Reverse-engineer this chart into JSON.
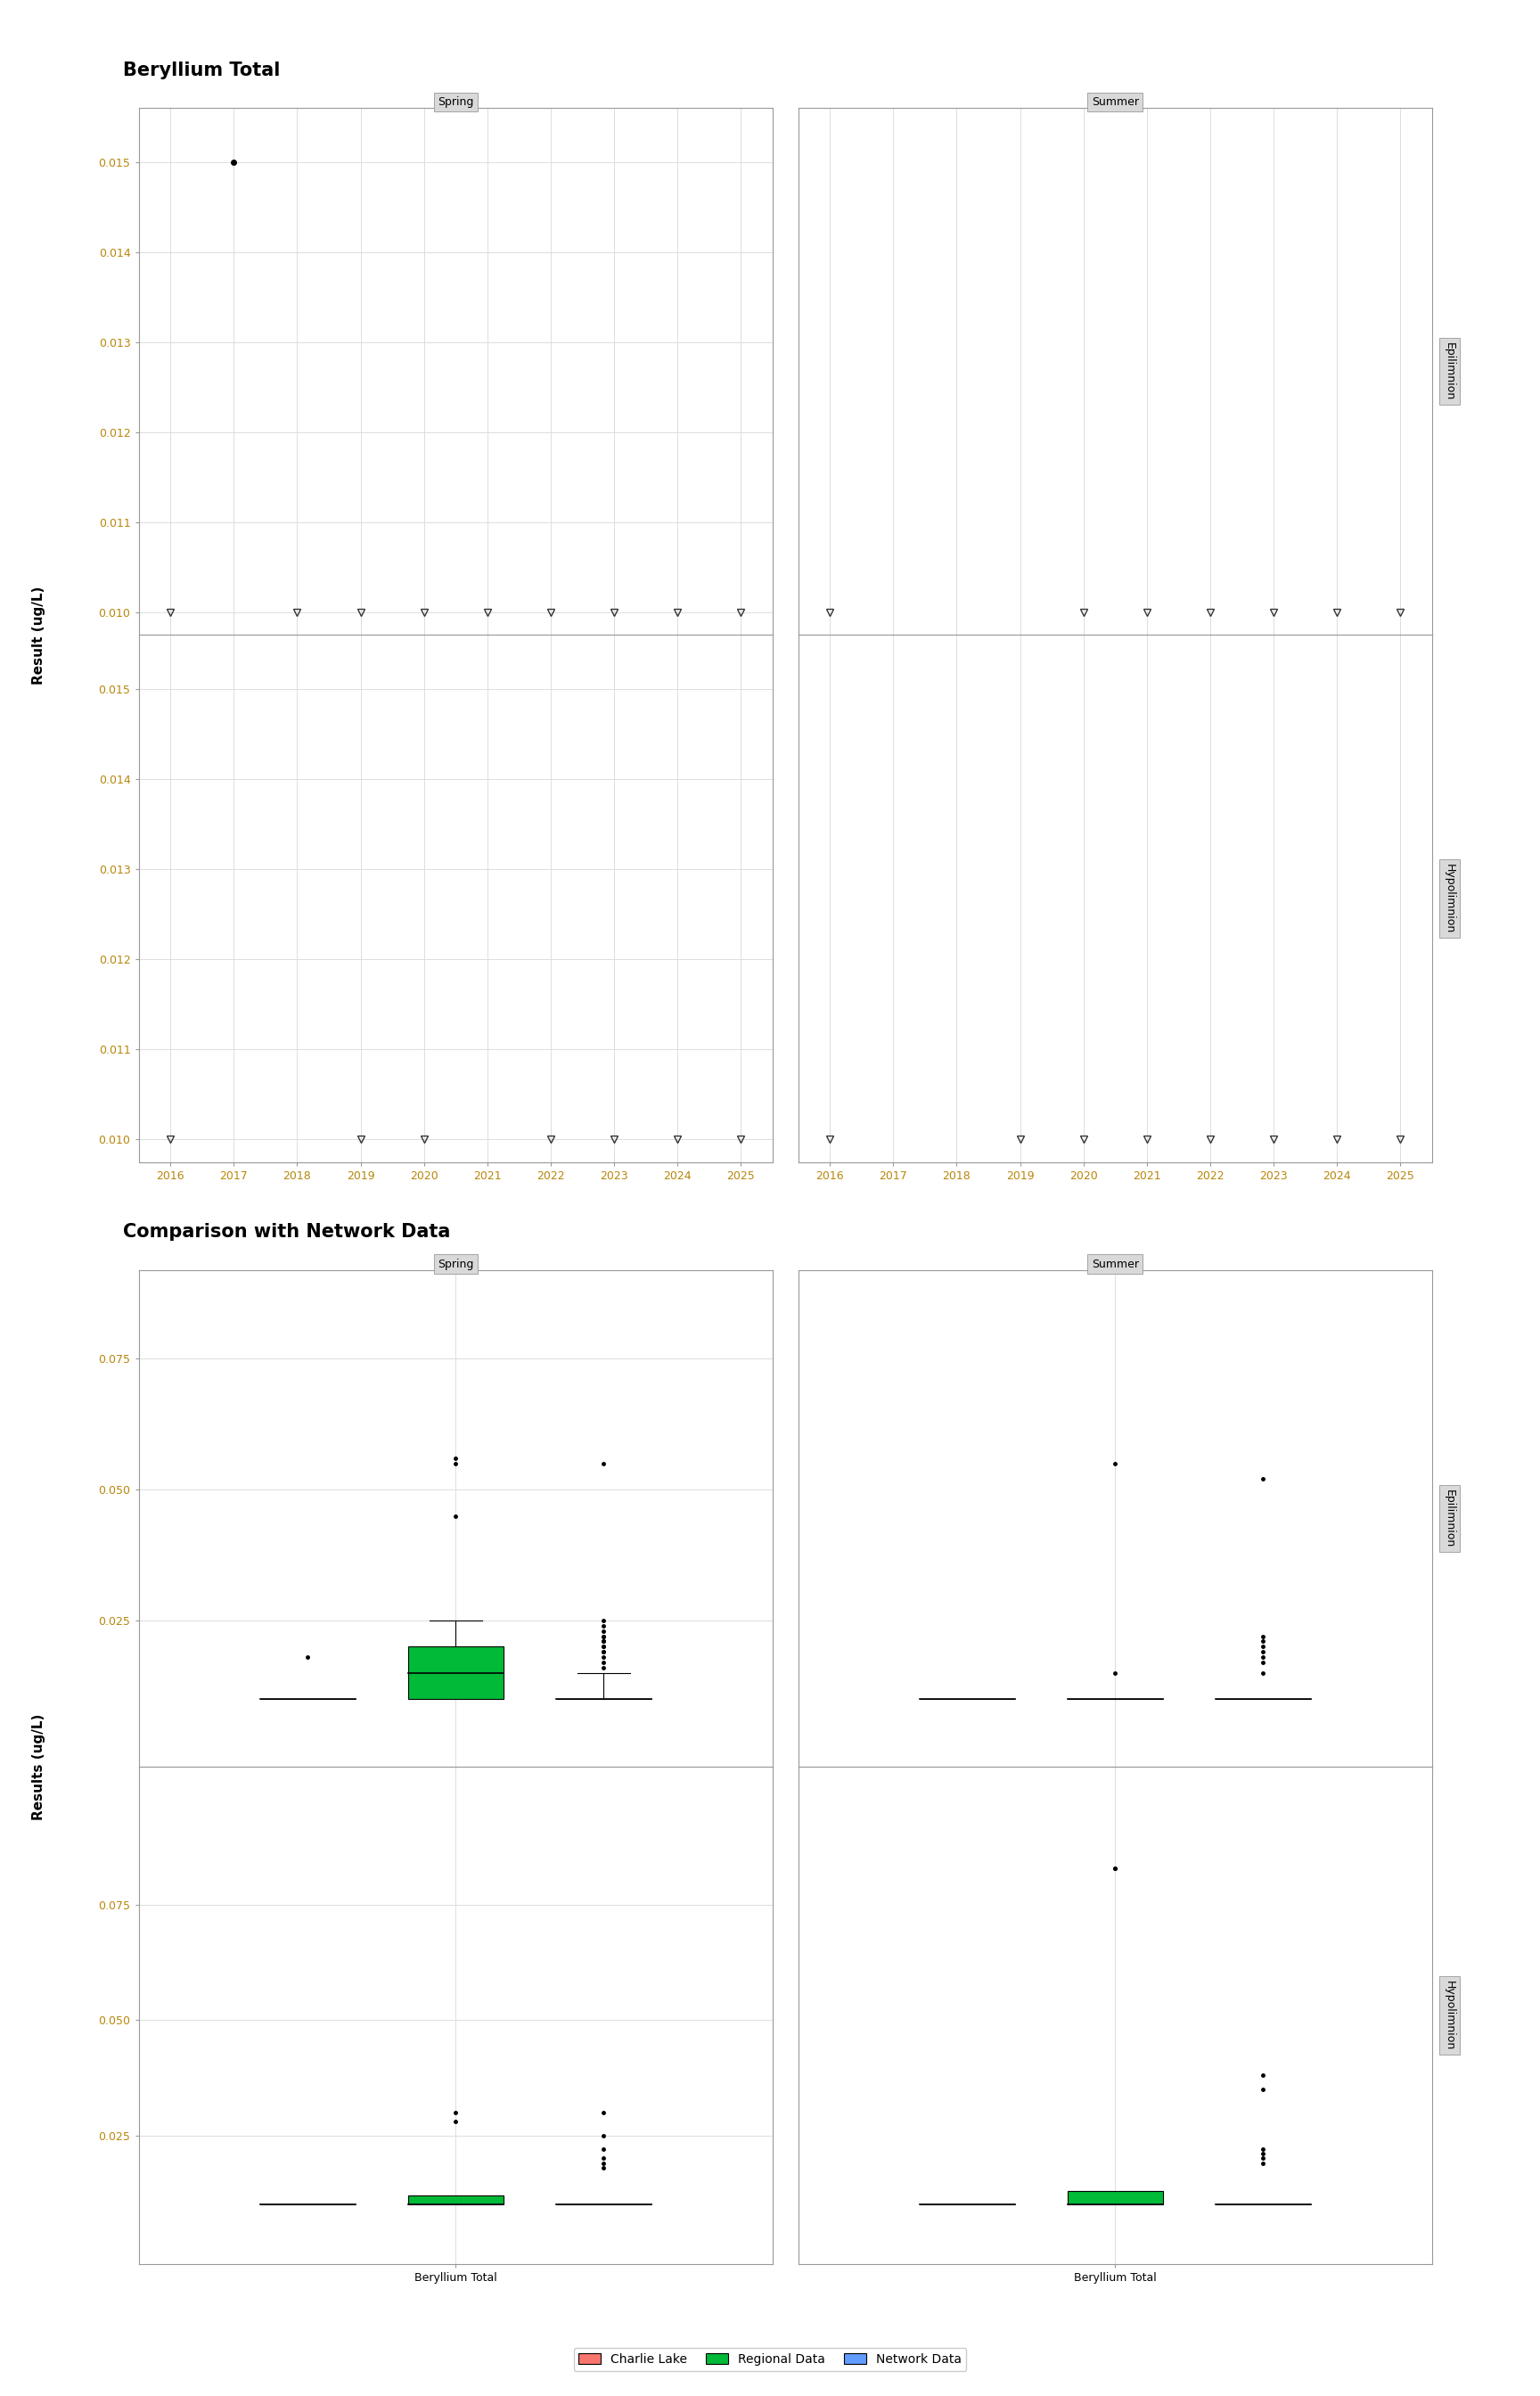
{
  "title1": "Beryllium Total",
  "title2": "Comparison with Network Data",
  "ylabel1": "Result (ug/L)",
  "ylabel2": "Results (ug/L)",
  "xlabel2": "Beryllium Total",
  "seasons": [
    "Spring",
    "Summer"
  ],
  "strata": [
    "Epilimnion",
    "Hypolimnion"
  ],
  "plot1_ylim": [
    0.00975,
    0.0156
  ],
  "plot1_yticks": [
    0.01,
    0.011,
    0.012,
    0.013,
    0.014,
    0.015
  ],
  "epi_spring_dot": {
    "year": 2017,
    "value": 0.015
  },
  "epi_spring_bdl_years": [
    2016,
    2018,
    2019,
    2020,
    2021,
    2022,
    2023,
    2024,
    2025
  ],
  "epi_summer_bdl_years": [
    2016,
    2020,
    2021,
    2022,
    2023,
    2024,
    2025
  ],
  "hypo_spring_bdl_years": [
    2016,
    2019,
    2020,
    2022,
    2023,
    2024,
    2025
  ],
  "hypo_summer_bdl_years": [
    2016,
    2019,
    2020,
    2021,
    2022,
    2023,
    2024,
    2025
  ],
  "bdl_value": 0.01,
  "plot2_ylim_epi": [
    -0.003,
    0.092
  ],
  "plot2_yticks_epi": [
    0.025,
    0.05,
    0.075
  ],
  "plot2_ylim_hypo": [
    -0.003,
    0.105
  ],
  "plot2_yticks_hypo": [
    0.025,
    0.05,
    0.075
  ],
  "legend_labels": [
    "Charlie Lake",
    "Regional Data",
    "Network Data"
  ],
  "legend_colors": [
    "#f8766d",
    "#00ba38",
    "#619cff"
  ],
  "charlie_lake_epi_spring": {
    "median": 0.01,
    "q1": 0.01,
    "q3": 0.01,
    "whislo": 0.01,
    "whishi": 0.01,
    "fliers": [
      0.018
    ]
  },
  "regional_epi_spring": {
    "median": 0.015,
    "q1": 0.01,
    "q3": 0.02,
    "whislo": 0.01,
    "whishi": 0.025,
    "fliers": [
      0.055,
      0.045,
      0.056
    ]
  },
  "network_epi_spring": {
    "median": 0.01,
    "q1": 0.01,
    "q3": 0.01,
    "whislo": 0.01,
    "whishi": 0.015,
    "fliers": [
      0.02,
      0.018,
      0.022,
      0.019,
      0.017,
      0.021,
      0.016,
      0.023,
      0.024,
      0.025,
      0.02,
      0.019,
      0.021,
      0.022,
      0.055
    ]
  },
  "charlie_lake_epi_summer": {
    "median": 0.01,
    "q1": 0.01,
    "q3": 0.01,
    "whislo": 0.01,
    "whishi": 0.01,
    "fliers": []
  },
  "regional_epi_summer": {
    "median": 0.01,
    "q1": 0.01,
    "q3": 0.01,
    "whislo": 0.01,
    "whishi": 0.01,
    "fliers": [
      0.055,
      0.015
    ]
  },
  "network_epi_summer": {
    "median": 0.01,
    "q1": 0.01,
    "q3": 0.01,
    "whislo": 0.01,
    "whishi": 0.01,
    "fliers": [
      0.02,
      0.018,
      0.022,
      0.019,
      0.017,
      0.021,
      0.052,
      0.015
    ]
  },
  "charlie_lake_hypo_spring": {
    "median": 0.01,
    "q1": 0.01,
    "q3": 0.01,
    "whislo": 0.01,
    "whishi": 0.01,
    "fliers": []
  },
  "regional_hypo_spring": {
    "median": 0.01,
    "q1": 0.01,
    "q3": 0.012,
    "whislo": 0.01,
    "whishi": 0.012,
    "fliers": [
      0.03,
      0.028
    ]
  },
  "network_hypo_spring": {
    "median": 0.01,
    "q1": 0.01,
    "q3": 0.01,
    "whislo": 0.01,
    "whishi": 0.01,
    "fliers": [
      0.02,
      0.018,
      0.022,
      0.019,
      0.025,
      0.03
    ]
  },
  "charlie_lake_hypo_summer": {
    "median": 0.01,
    "q1": 0.01,
    "q3": 0.01,
    "whislo": 0.01,
    "whishi": 0.01,
    "fliers": []
  },
  "regional_hypo_summer": {
    "median": 0.01,
    "q1": 0.01,
    "q3": 0.013,
    "whislo": 0.01,
    "whishi": 0.013,
    "fliers": [
      0.083,
      0.083
    ]
  },
  "network_hypo_summer": {
    "median": 0.01,
    "q1": 0.01,
    "q3": 0.01,
    "whislo": 0.01,
    "whishi": 0.01,
    "fliers": [
      0.02,
      0.038,
      0.019,
      0.022,
      0.021,
      0.035
    ]
  },
  "background_color": "#ffffff",
  "panel_header_color": "#d9d9d9",
  "grid_color": "#dddddd",
  "axis_tick_color": "#b8860b",
  "spine_color": "#999999",
  "years_xlim": [
    2015.5,
    2025.5
  ],
  "years_xticks": [
    2016,
    2017,
    2018,
    2019,
    2020,
    2021,
    2022,
    2023,
    2024,
    2025
  ]
}
